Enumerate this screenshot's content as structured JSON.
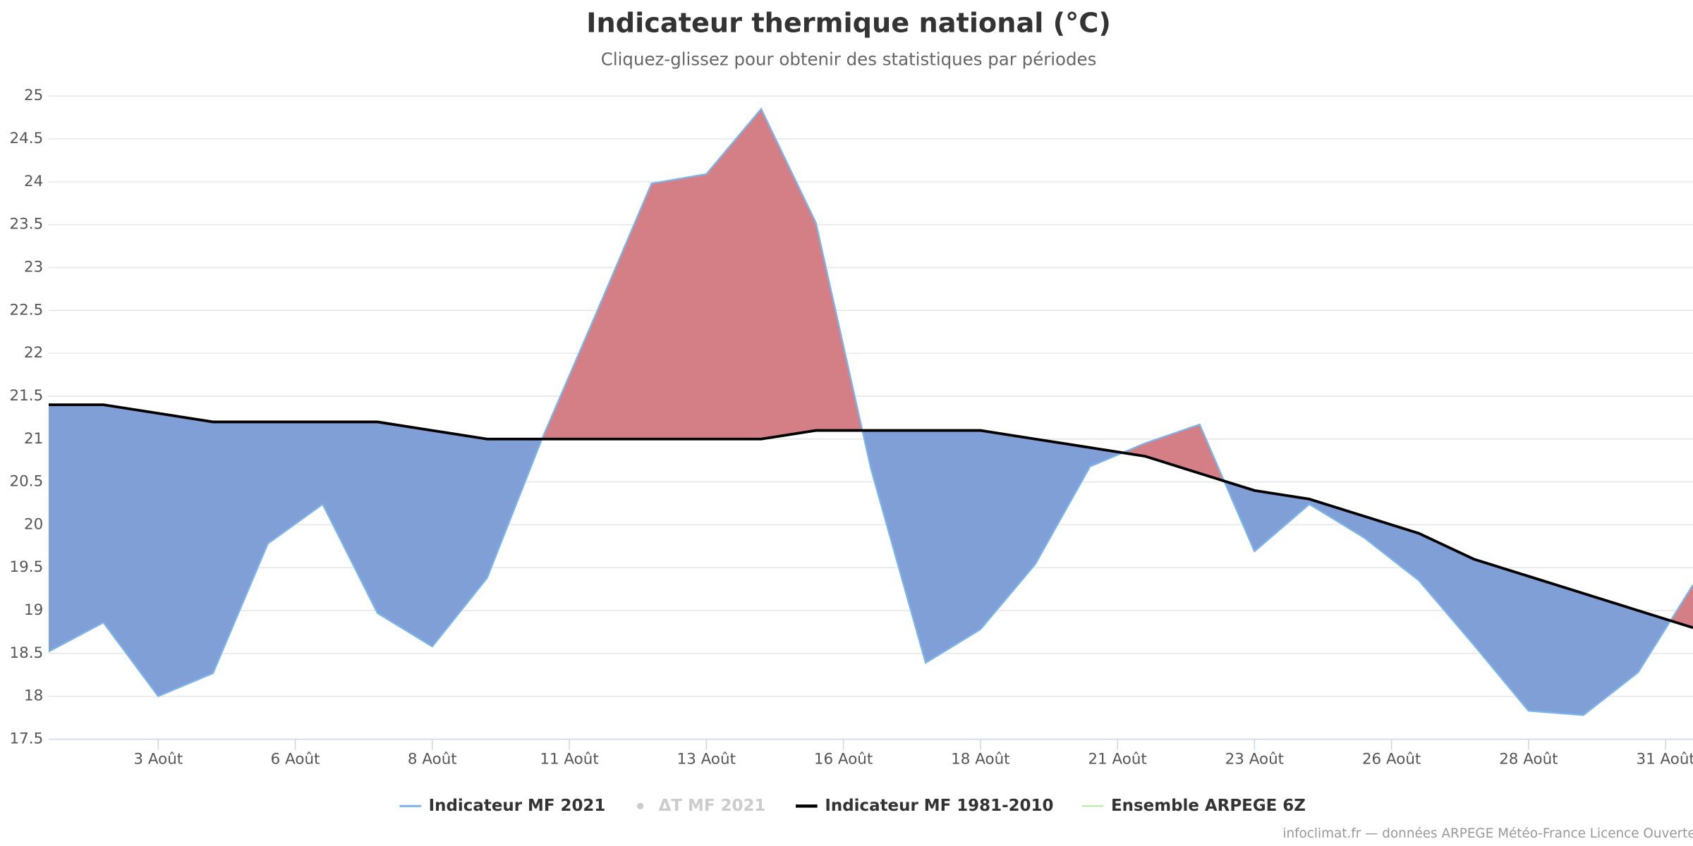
{
  "chart_data": {
    "type": "area",
    "title": "Indicateur thermique national (°C)",
    "subtitle": "Cliquez-glissez pour obtenir des statistiques par périodes",
    "x": [
      1,
      2,
      3,
      4,
      5,
      6,
      7,
      8,
      9,
      10,
      11,
      12,
      13,
      14,
      15,
      16,
      17,
      18,
      19,
      20,
      21,
      22,
      23,
      24,
      25,
      26,
      27,
      28,
      29,
      30,
      31
    ],
    "series": [
      {
        "name": "Indicateur MF 2021",
        "color": "#7cb5ec",
        "values": [
          18.52,
          18.86,
          18.0,
          18.27,
          19.78,
          20.24,
          18.97,
          18.58,
          19.38,
          21.0,
          22.48,
          23.98,
          24.09,
          24.85,
          23.52,
          20.66,
          18.39,
          18.78,
          19.54,
          20.68,
          20.95,
          21.17,
          19.69,
          20.24,
          19.85,
          19.35,
          18.6,
          17.83,
          17.78,
          18.28,
          19.3
        ]
      },
      {
        "name": "Indicateur MF 1981-2010",
        "color": "#000000",
        "values": [
          21.4,
          21.4,
          21.3,
          21.2,
          21.2,
          21.2,
          21.2,
          21.1,
          21.0,
          21.0,
          21.0,
          21.0,
          21.0,
          21.0,
          21.1,
          21.1,
          21.1,
          21.1,
          21.0,
          20.9,
          20.8,
          20.6,
          20.4,
          20.3,
          20.1,
          19.9,
          19.6,
          19.4,
          19.2,
          19.0,
          18.8
        ]
      }
    ],
    "above_color": "#d47f85",
    "below_color": "#7f9fd6",
    "legend_extra": [
      {
        "name": "ΔT MF 2021",
        "color": "#cccccc"
      },
      {
        "name": "Ensemble ARPEGE 6Z",
        "color": "#90ed7d"
      }
    ],
    "xlim": [
      1,
      31
    ],
    "xticks": [
      {
        "value": 3,
        "label": "3 Août"
      },
      {
        "value": 5.5,
        "label": "6 Août"
      },
      {
        "value": 8,
        "label": "8 Août"
      },
      {
        "value": 10.5,
        "label": "11 Août"
      },
      {
        "value": 13,
        "label": "13 Août"
      },
      {
        "value": 15.5,
        "label": "16 Août"
      },
      {
        "value": 18,
        "label": "18 Août"
      },
      {
        "value": 20.5,
        "label": "21 Août"
      },
      {
        "value": 23,
        "label": "23 Août"
      },
      {
        "value": 25.5,
        "label": "26 Août"
      },
      {
        "value": 28,
        "label": "28 Août"
      },
      {
        "value": 30.5,
        "label": "31 Août"
      }
    ],
    "ylim": [
      17.5,
      25
    ],
    "yticks": [
      17.5,
      18,
      18.5,
      19,
      19.5,
      20,
      20.5,
      21,
      21.5,
      22,
      22.5,
      23,
      23.5,
      24,
      24.5,
      25
    ],
    "grid": true,
    "credits": "infoclimat.fr — données ARPEGE Météo-France Licence Ouverte"
  }
}
